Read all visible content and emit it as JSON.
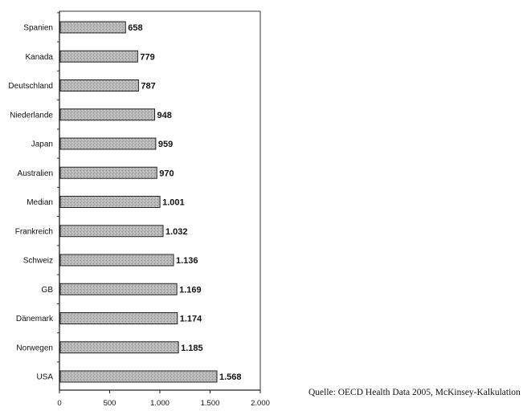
{
  "chart_data": {
    "type": "bar",
    "orientation": "horizontal",
    "categories": [
      "Spanien",
      "Kanada",
      "Deutschland",
      "Niederlande",
      "Japan",
      "Australien",
      "Median",
      "Frankreich",
      "Schweiz",
      "GB",
      "Dänemark",
      "Norwegen",
      "USA"
    ],
    "values": [
      658,
      779,
      787,
      948,
      959,
      970,
      1001,
      1032,
      1136,
      1169,
      1174,
      1185,
      1568
    ],
    "value_labels": [
      "658",
      "779",
      "787",
      "948",
      "959",
      "970",
      "1.001",
      "1.032",
      "1.136",
      "1.169",
      "1.174",
      "1.185",
      "1.568"
    ],
    "xticks": [
      0,
      500,
      1000,
      1500,
      2000
    ],
    "xtick_labels": [
      "0",
      "500",
      "1.000",
      "1.500",
      "2.000"
    ],
    "xlim": [
      0,
      2000
    ],
    "title": "",
    "xlabel": "",
    "ylabel": "",
    "grid": false,
    "bar_fill": "#b4b4b4",
    "bar_stroke": "#222222"
  },
  "source_note": "Quelle: OECD Health Data 2005, McKinsey-Kalkulation"
}
